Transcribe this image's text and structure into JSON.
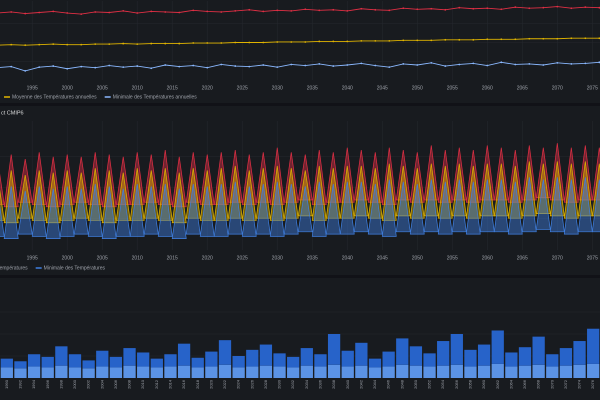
{
  "chart_data": [
    {
      "type": "line",
      "grid": true,
      "x": [
        1990,
        1992,
        1994,
        1996,
        1998,
        2000,
        2002,
        2004,
        2006,
        2008,
        2010,
        2012,
        2014,
        2016,
        2018,
        2020,
        2022,
        2024,
        2026,
        2028,
        2030,
        2032,
        2034,
        2036,
        2038,
        2040,
        2042,
        2044,
        2046,
        2048,
        2050,
        2052,
        2054,
        2056,
        2058,
        2060,
        2062,
        2064,
        2066,
        2068,
        2070,
        2072,
        2074,
        2076
      ],
      "xlim": [
        1990.4,
        2076.1
      ],
      "xticks": [
        1995,
        2000,
        2005,
        2010,
        2015,
        2020,
        2025,
        2030,
        2035,
        2040,
        2045,
        2050,
        2055,
        2060,
        2065,
        2070,
        2075
      ],
      "ylim": [
        4.5,
        18.5
      ],
      "series": [
        {
          "color": "#e02f44",
          "values": [
            17.0,
            17.2,
            16.9,
            17.1,
            17.3,
            17.0,
            16.8,
            17.2,
            17.1,
            17.4,
            17.0,
            17.3,
            17.2,
            17.1,
            17.5,
            17.3,
            17.2,
            17.4,
            17.6,
            17.3,
            17.5,
            17.4,
            17.7,
            17.5,
            17.6,
            17.4,
            17.8,
            17.6,
            17.5,
            17.9,
            17.7,
            17.8,
            17.6,
            18.0,
            17.8,
            17.9,
            17.7,
            18.1,
            17.9,
            18.0,
            18.2,
            17.9,
            18.1,
            18.0
          ]
        },
        {
          "name": "Moyenne des Températures annuelles",
          "color": "#e0b400",
          "values": [
            11.0,
            11.1,
            11.0,
            11.1,
            11.2,
            11.1,
            11.1,
            11.2,
            11.2,
            11.3,
            11.2,
            11.3,
            11.3,
            11.3,
            11.4,
            11.4,
            11.4,
            11.5,
            11.5,
            11.5,
            11.6,
            11.6,
            11.6,
            11.7,
            11.7,
            11.7,
            11.8,
            11.8,
            11.8,
            11.9,
            11.9,
            11.9,
            12.0,
            12.0,
            12.0,
            12.1,
            12.1,
            12.1,
            12.2,
            12.2,
            12.2,
            12.3,
            12.3,
            12.3
          ]
        },
        {
          "name": "Minimale des Températures annuelles",
          "color": "#8ab8ff",
          "values": [
            6.8,
            7.0,
            6.2,
            6.9,
            7.1,
            6.6,
            7.0,
            6.8,
            7.2,
            6.9,
            7.1,
            6.7,
            7.3,
            7.0,
            7.2,
            6.8,
            7.4,
            7.1,
            7.0,
            7.3,
            6.9,
            7.4,
            7.2,
            7.5,
            7.1,
            7.3,
            7.6,
            7.2,
            6.9,
            7.5,
            7.3,
            7.7,
            7.1,
            7.4,
            7.6,
            7.2,
            7.8,
            7.4,
            7.5,
            7.3,
            7.7,
            7.5,
            7.6,
            7.8
          ]
        }
      ]
    },
    {
      "type": "range",
      "title": "ct CMIP6",
      "grid": true,
      "x": [
        1990,
        1992,
        1994,
        1996,
        1998,
        2000,
        2002,
        2004,
        2006,
        2008,
        2010,
        2012,
        2014,
        2016,
        2018,
        2020,
        2022,
        2024,
        2026,
        2028,
        2030,
        2032,
        2034,
        2036,
        2038,
        2040,
        2042,
        2044,
        2046,
        2048,
        2050,
        2052,
        2054,
        2056,
        2058,
        2060,
        2062,
        2064,
        2066,
        2068,
        2070,
        2072,
        2074,
        2076
      ],
      "xlim": [
        1990.4,
        2076.1
      ],
      "xticks": [
        1995,
        2000,
        2005,
        2010,
        2015,
        2020,
        2025,
        2030,
        2035,
        2040,
        2045,
        2050,
        2055,
        2060,
        2065,
        2070,
        2075
      ],
      "ylim": [
        -10,
        45
      ],
      "series": [
        {
          "color": "#e02f44",
          "values": [
            31,
            32,
            30,
            33,
            31,
            32,
            31,
            33,
            32,
            31,
            33,
            32,
            34,
            31,
            33,
            32,
            33,
            34,
            32,
            33,
            35,
            33,
            32,
            34,
            33,
            35,
            34,
            33,
            35,
            34,
            33,
            36,
            34,
            35,
            34,
            36,
            35,
            34,
            36,
            35,
            37,
            35,
            36,
            35
          ],
          "lows": [
            10,
            9,
            11,
            10,
            9,
            10,
            11,
            10,
            9,
            10,
            10,
            11,
            10,
            9,
            11,
            10,
            10,
            11,
            10,
            11,
            10,
            11,
            12,
            10,
            11,
            11,
            12,
            11,
            10,
            12,
            11,
            12,
            11,
            12,
            11,
            12,
            12,
            11,
            12,
            13,
            12,
            11,
            12,
            12
          ]
        },
        {
          "name": "nne des Températures",
          "color": "#e0b400",
          "values": [
            24,
            25,
            23,
            25,
            24,
            25,
            24,
            26,
            25,
            24,
            26,
            25,
            26,
            24,
            26,
            25,
            26,
            27,
            25,
            26,
            27,
            26,
            25,
            27,
            26,
            27,
            27,
            26,
            28,
            27,
            26,
            28,
            27,
            28,
            27,
            28,
            28,
            27,
            29,
            28,
            29,
            28,
            29,
            28
          ],
          "lows": [
            3,
            2,
            4,
            3,
            2,
            3,
            4,
            3,
            2,
            3,
            3,
            4,
            3,
            2,
            4,
            3,
            3,
            4,
            3,
            4,
            3,
            4,
            5,
            3,
            4,
            4,
            5,
            4,
            3,
            5,
            4,
            5,
            4,
            5,
            4,
            5,
            5,
            4,
            5,
            6,
            5,
            4,
            5,
            5
          ]
        },
        {
          "name": "Minimale des Températures",
          "color": "#3f7fe0",
          "values": [
            17,
            18,
            16,
            18,
            17,
            18,
            17,
            19,
            18,
            17,
            19,
            18,
            19,
            17,
            19,
            18,
            19,
            20,
            18,
            19,
            20,
            19,
            18,
            20,
            19,
            20,
            20,
            19,
            21,
            20,
            19,
            21,
            20,
            21,
            20,
            21,
            21,
            20,
            22,
            21,
            22,
            21,
            22,
            21
          ],
          "lows": [
            -4,
            -5,
            -3,
            -4,
            -5,
            -4,
            -3,
            -4,
            -5,
            -4,
            -4,
            -3,
            -4,
            -5,
            -3,
            -4,
            -4,
            -3,
            -4,
            -3,
            -4,
            -3,
            -2,
            -4,
            -3,
            -3,
            -2,
            -3,
            -4,
            -2,
            -3,
            -2,
            -3,
            -2,
            -3,
            -2,
            -2,
            -3,
            -2,
            -1,
            -2,
            -3,
            -2,
            -2
          ]
        }
      ]
    },
    {
      "type": "bar",
      "stacked": true,
      "grid": true,
      "categories": [
        "1990",
        "1992",
        "1994",
        "1996",
        "1998",
        "2000",
        "2002",
        "2004",
        "2006",
        "2008",
        "2010",
        "2012",
        "2014",
        "2016",
        "2018",
        "2020",
        "2022",
        "2024",
        "2026",
        "2028",
        "2030",
        "2032",
        "2034",
        "2036",
        "2038",
        "2040",
        "2042",
        "2044",
        "2046",
        "2048",
        "2050",
        "2052",
        "2054",
        "2056",
        "2058",
        "2060",
        "2062",
        "2064",
        "2066",
        "2068",
        "2070",
        "2072",
        "2074",
        "2076"
      ],
      "ylim": [
        0,
        100
      ],
      "series": [
        {
          "color": "#5b93e6",
          "values": [
            12,
            11,
            13,
            12,
            14,
            12,
            11,
            13,
            12,
            14,
            13,
            12,
            13,
            14,
            12,
            13,
            15,
            12,
            13,
            14,
            13,
            12,
            14,
            13,
            15,
            13,
            14,
            12,
            13,
            15,
            14,
            13,
            14,
            15,
            13,
            14,
            16,
            13,
            14,
            15,
            13,
            14,
            15,
            16
          ]
        },
        {
          "color": "#2763c9",
          "values": [
            10,
            8,
            14,
            12,
            22,
            15,
            9,
            18,
            12,
            20,
            16,
            10,
            14,
            25,
            11,
            17,
            28,
            13,
            19,
            24,
            15,
            12,
            20,
            14,
            35,
            18,
            26,
            10,
            17,
            30,
            22,
            15,
            28,
            35,
            19,
            24,
            38,
            16,
            21,
            32,
            14,
            20,
            27,
            40
          ]
        }
      ]
    }
  ]
}
